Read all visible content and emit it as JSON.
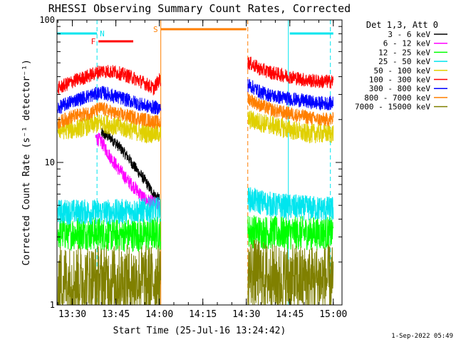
{
  "chart_data": {
    "type": "line",
    "title": "RHESSI Observing Summary Count Rates, Corrected",
    "xlabel": "Start Time (25-Jul-16 13:24:42)",
    "ylabel": "Corrected Count Rate (s⁻¹ detector⁻¹)",
    "yscale": "log",
    "ylim": [
      1,
      100
    ],
    "y_ticks": [
      "1",
      "10",
      "100"
    ],
    "xlim": [
      "13:24:42",
      "15:03:00"
    ],
    "x_ticks": [
      "13:30",
      "13:45",
      "14:00",
      "14:15",
      "14:30",
      "14:45",
      "15:00"
    ],
    "legend_title": "Det 1,3, Att 0",
    "legend_position": "right",
    "footer_date": "1-Sep-2022 05:49",
    "flags": [
      {
        "label": "N",
        "color": "#00e5ee",
        "segments": [
          [
            "13:24:42",
            "13:38:30"
          ],
          [
            "14:45:00",
            "15:00:00"
          ]
        ]
      },
      {
        "label": "F",
        "color": "#ff0000",
        "segments": [
          [
            "13:39:00",
            "13:51:00"
          ]
        ]
      },
      {
        "label": "S",
        "color": "#ff7f00",
        "segments": [
          [
            "14:00:30",
            "14:30:00"
          ]
        ]
      }
    ],
    "vlines": [
      {
        "t": "13:38:30",
        "color": "#00e5ee",
        "style": "dashed"
      },
      {
        "t": "14:00:30",
        "color": "#ff7f00",
        "style": "solid"
      },
      {
        "t": "14:30:30",
        "color": "#ff7f00",
        "style": "dashed"
      },
      {
        "t": "14:44:30",
        "color": "#00e5ee",
        "style": "solid"
      },
      {
        "t": "14:59:00",
        "color": "#00e5ee",
        "style": "dashed"
      }
    ],
    "gap": [
      "14:00:30",
      "14:30:30"
    ],
    "series": [
      {
        "name": "3 - 6 keV",
        "color": "#000000",
        "x": [
          "13:40",
          "13:43",
          "13:46",
          "13:49",
          "13:52",
          "13:55",
          "13:58",
          "14:00"
        ],
        "y": [
          16,
          15,
          13,
          11,
          9,
          7.5,
          6,
          5.5
        ]
      },
      {
        "name": "6 - 12 keV",
        "color": "#ff00ff",
        "x": [
          "13:38",
          "13:40",
          "13:43",
          "13:46",
          "13:49",
          "13:52",
          "13:55",
          "13:58",
          "14:00"
        ],
        "y": [
          15,
          14,
          11,
          9,
          7.5,
          6.5,
          5.5,
          5.2,
          5
        ]
      },
      {
        "name": "12 - 25 keV",
        "color": "#00ff00",
        "x": [
          "13:25",
          "13:35",
          "13:45",
          "13:55",
          "14:00",
          "14:31",
          "14:40",
          "14:50",
          "15:00"
        ],
        "y": [
          3.2,
          3.2,
          3.1,
          3.1,
          3.2,
          3.3,
          3.2,
          3.2,
          3.2
        ]
      },
      {
        "name": "25 - 50 keV",
        "color": "#00e5ee",
        "x": [
          "13:25",
          "13:35",
          "13:45",
          "13:55",
          "14:00",
          "14:31",
          "14:40",
          "14:50",
          "15:00"
        ],
        "y": [
          4.5,
          4.5,
          4.5,
          4.6,
          4.7,
          5.5,
          5,
          4.8,
          4.7
        ]
      },
      {
        "name": "50 - 100 keV",
        "color": "#e0d000",
        "x": [
          "13:25",
          "13:30",
          "13:35",
          "13:40",
          "13:45",
          "13:50",
          "13:55",
          "14:00",
          "14:31",
          "14:35",
          "14:40",
          "14:45",
          "14:50",
          "14:55",
          "15:00"
        ],
        "y": [
          17,
          17,
          18,
          19,
          18,
          17,
          16,
          16,
          20,
          19,
          18,
          17,
          16,
          16,
          16
        ]
      },
      {
        "name": "100 - 300 keV",
        "color": "#ff0000",
        "x": [
          "13:25",
          "13:30",
          "13:35",
          "13:40",
          "13:45",
          "13:50",
          "13:55",
          "13:58",
          "14:00",
          "14:31",
          "14:35",
          "14:40",
          "14:45",
          "14:50",
          "14:55",
          "15:00"
        ],
        "y": [
          33,
          37,
          40,
          44,
          43,
          40,
          36,
          33,
          38,
          50,
          45,
          42,
          40,
          38,
          37,
          37
        ]
      },
      {
        "name": "300 - 800 keV",
        "color": "#0000ff",
        "x": [
          "13:25",
          "13:30",
          "13:35",
          "13:40",
          "13:45",
          "13:50",
          "13:55",
          "14:00",
          "14:31",
          "14:35",
          "14:40",
          "14:45",
          "14:50",
          "14:55",
          "15:00"
        ],
        "y": [
          24,
          27,
          29,
          31,
          29,
          27,
          25,
          24,
          35,
          31,
          29,
          28,
          27,
          26,
          26
        ]
      },
      {
        "name": "800 - 7000 keV",
        "color": "#ff7f00",
        "x": [
          "13:25",
          "13:30",
          "13:35",
          "13:40",
          "13:45",
          "13:50",
          "13:55",
          "14:00",
          "14:31",
          "14:35",
          "14:40",
          "14:45",
          "14:50",
          "14:55",
          "15:00"
        ],
        "y": [
          19,
          21,
          22,
          24,
          22,
          21,
          20,
          19,
          28,
          25,
          23,
          22,
          21,
          20,
          20
        ]
      },
      {
        "name": "7000 - 15000 keV",
        "color": "#808000",
        "x": [
          "13:25",
          "13:35",
          "13:45",
          "13:55",
          "14:00",
          "14:31",
          "14:40",
          "14:50",
          "15:00"
        ],
        "y": [
          1.5,
          1.5,
          1.5,
          1.5,
          1.5,
          1.7,
          1.5,
          1.5,
          1.5
        ]
      }
    ]
  }
}
